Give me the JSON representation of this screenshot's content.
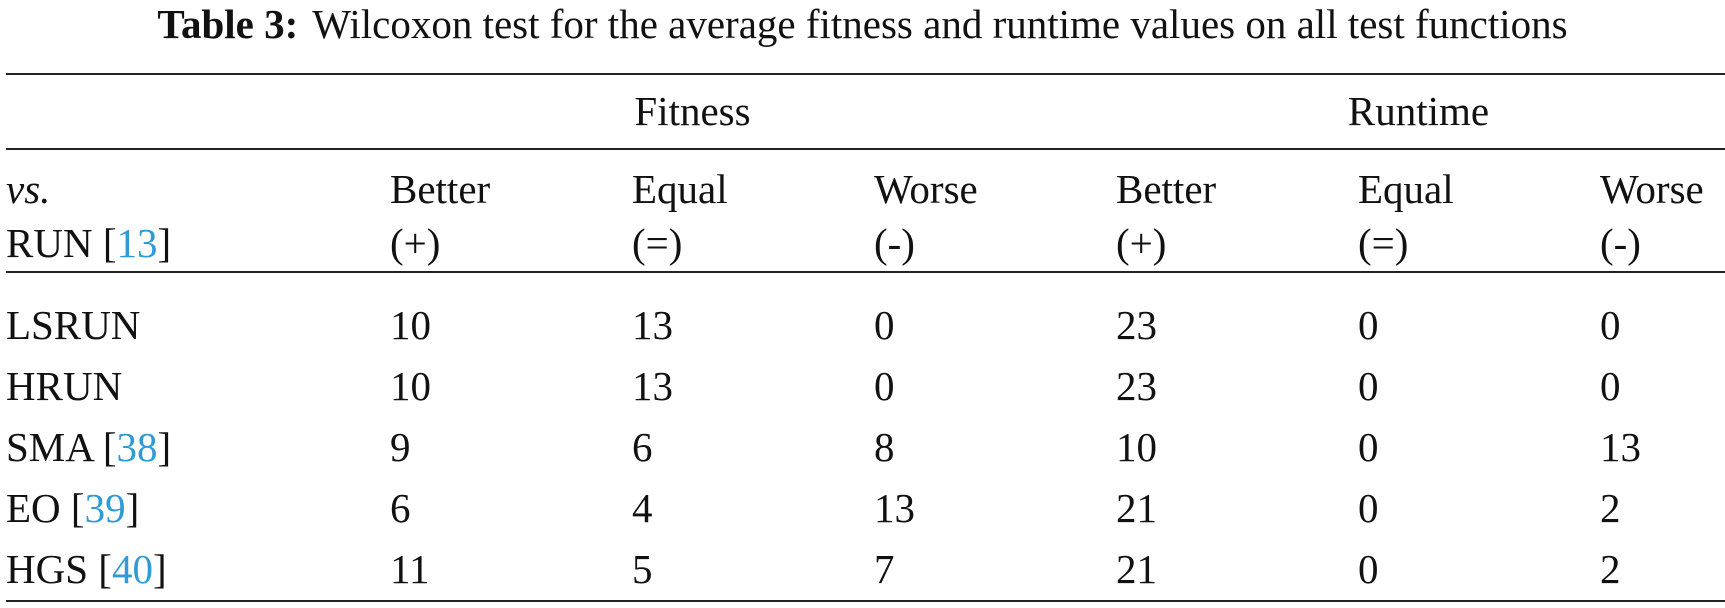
{
  "caption": {
    "label": "Table 3:",
    "text": "Wilcoxon test for the average fitness and runtime values on all test functions"
  },
  "table": {
    "groups": [
      "Fitness",
      "Runtime"
    ],
    "corner": {
      "line1": "vs.",
      "line2": {
        "text": "RUN [",
        "cite": "13",
        "end": "]"
      }
    },
    "columns": [
      {
        "label": "Better",
        "sign": "(+)"
      },
      {
        "label": "Equal",
        "sign": "(=)"
      },
      {
        "label": "Worse",
        "sign": "(-)"
      },
      {
        "label": "Better",
        "sign": "(+)"
      },
      {
        "label": "Equal",
        "sign": "(=)"
      },
      {
        "label": "Worse",
        "sign": "(-)"
      }
    ],
    "rows": [
      {
        "label": {
          "text": "LSRUN"
        },
        "values": [
          10,
          13,
          0,
          23,
          0,
          0
        ]
      },
      {
        "label": {
          "text": "HRUN"
        },
        "values": [
          10,
          13,
          0,
          23,
          0,
          0
        ]
      },
      {
        "label": {
          "text": "SMA [",
          "cite": "38",
          "end": "]"
        },
        "values": [
          9,
          6,
          8,
          10,
          0,
          13
        ]
      },
      {
        "label": {
          "text": "EO [",
          "cite": "39",
          "end": "]"
        },
        "values": [
          6,
          4,
          13,
          21,
          0,
          2
        ]
      },
      {
        "label": {
          "text": "HGS [",
          "cite": "40",
          "end": "]"
        },
        "values": [
          11,
          5,
          7,
          21,
          0,
          2
        ]
      }
    ]
  }
}
